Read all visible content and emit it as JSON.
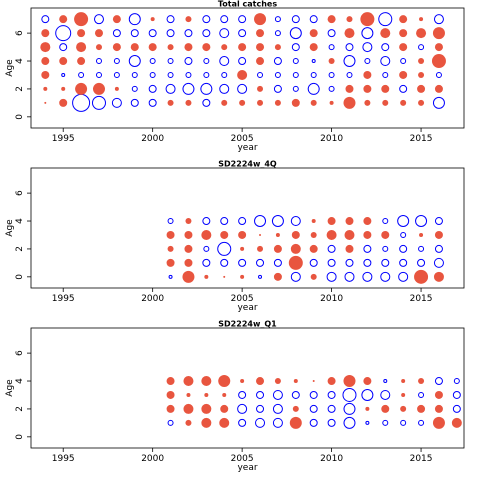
{
  "chart_data": [
    {
      "type": "scatter",
      "title": "Total catches",
      "xlabel": "year",
      "ylabel": "Age",
      "xlim": [
        1993.2,
        2017.4
      ],
      "ylim": [
        -0.8,
        7.8
      ],
      "xticks": [
        1995,
        2000,
        2005,
        2010,
        2015
      ],
      "yticks": [
        0,
        2,
        4,
        6
      ],
      "positive_color": "#E8553F",
      "negative_color": "#0000FF",
      "ages": [
        1,
        2,
        3,
        4,
        5,
        6,
        7
      ],
      "years": [
        1994,
        1995,
        1996,
        1997,
        1998,
        1999,
        2000,
        2001,
        2002,
        2003,
        2004,
        2005,
        2006,
        2007,
        2008,
        2009,
        2010,
        2011,
        2012,
        2013,
        2014,
        2015,
        2016
      ],
      "residuals": [
        [
          1,
          4,
          -9,
          -7,
          -5,
          -4,
          -4,
          3,
          3,
          -4,
          3,
          3,
          3,
          3,
          4,
          3,
          2,
          6,
          3,
          3,
          3,
          3,
          -6
        ],
        [
          2,
          2,
          6,
          6,
          2,
          -3,
          -4,
          -5,
          -6,
          -6,
          -5,
          -5,
          3,
          -4,
          -3,
          -6,
          -3,
          4,
          4,
          4,
          -4,
          4,
          4
        ],
        [
          4,
          -2,
          -3,
          -3,
          -3,
          -3,
          -3,
          -3,
          -3,
          -3,
          -3,
          5,
          -3,
          -3,
          -3,
          -3,
          -3,
          -3,
          4,
          -3,
          4,
          3,
          -3
        ],
        [
          4,
          4,
          4,
          -3,
          -3,
          -6,
          -3,
          -3,
          -4,
          -3,
          -5,
          -4,
          4,
          -4,
          -3,
          -2,
          3,
          -6,
          -3,
          -5,
          -3,
          3,
          7
        ],
        [
          5,
          -4,
          5,
          3,
          4,
          4,
          4,
          3,
          4,
          4,
          3,
          4,
          4,
          3,
          -4,
          4,
          -3,
          -4,
          -5,
          -4,
          4,
          -3,
          4
        ],
        [
          4,
          -8,
          4,
          4,
          -4,
          -4,
          -4,
          -4,
          -4,
          -4,
          -5,
          -4,
          4,
          -3,
          -6,
          4,
          -4,
          5,
          -6,
          5,
          4,
          5,
          6
        ],
        [
          -4,
          4,
          7,
          -5,
          4,
          -6,
          2,
          -4,
          3,
          -4,
          -4,
          -4,
          6,
          -3,
          -4,
          -4,
          4,
          3,
          7,
          -7,
          4,
          2,
          -5
        ]
      ]
    },
    {
      "type": "scatter",
      "title": "SD2224w_4Q",
      "xlabel": "year",
      "ylabel": "Age",
      "xlim": [
        1993.2,
        2017.4
      ],
      "ylim": [
        -0.8,
        7.8
      ],
      "xticks": [
        1995,
        2000,
        2005,
        2010,
        2015
      ],
      "yticks": [
        0,
        2,
        4,
        6
      ],
      "positive_color": "#E8553F",
      "negative_color": "#0000FF",
      "ages": [
        0,
        1,
        2,
        3,
        4
      ],
      "years": [
        2001,
        2002,
        2003,
        2004,
        2005,
        2006,
        2007,
        2008,
        2009,
        2010,
        2011,
        2012,
        2013,
        2014,
        2015,
        2016
      ],
      "residuals": [
        [
          -2,
          6,
          2,
          1,
          2,
          -2,
          4,
          -5,
          3,
          -5,
          -5,
          -5,
          -5,
          -5,
          7,
          5
        ],
        [
          4,
          4,
          -4,
          -4,
          -4,
          -4,
          -4,
          7,
          -4,
          -4,
          -4,
          -4,
          -4,
          -4,
          -4,
          -5
        ],
        [
          3,
          4,
          -3,
          -7,
          2,
          3,
          4,
          5,
          4,
          -4,
          4,
          -4,
          -3,
          -4,
          -3,
          -4
        ],
        [
          4,
          4,
          5,
          4,
          4,
          1,
          2,
          4,
          3,
          5,
          5,
          4,
          4,
          -3,
          2,
          4
        ],
        [
          -3,
          3,
          -4,
          -4,
          -4,
          -6,
          -6,
          -5,
          2,
          4,
          4,
          4,
          -3,
          -6,
          -6,
          -4
        ]
      ]
    },
    {
      "type": "scatter",
      "title": "SD2224w_Q1",
      "xlabel": "year",
      "ylabel": "Age",
      "xlim": [
        1993.2,
        2017.4
      ],
      "ylim": [
        -0.8,
        7.8
      ],
      "xticks": [
        1995,
        2000,
        2005,
        2010,
        2015
      ],
      "yticks": [
        0,
        2,
        4,
        6
      ],
      "positive_color": "#E8553F",
      "negative_color": "#0000FF",
      "ages": [
        1,
        2,
        3,
        4
      ],
      "years": [
        2001,
        2002,
        2003,
        2004,
        2005,
        2006,
        2007,
        2008,
        2009,
        2010,
        2011,
        2012,
        2013,
        2014,
        2015,
        2016,
        2017
      ],
      "residuals": [
        [
          -3,
          3,
          5,
          5,
          -4,
          -5,
          -5,
          6,
          -4,
          -4,
          -6,
          -2,
          -3,
          -3,
          -3,
          6,
          5
        ],
        [
          4,
          5,
          5,
          4,
          -5,
          -4,
          -5,
          3,
          -4,
          -4,
          -6,
          2,
          4,
          3,
          4,
          4,
          -4
        ],
        [
          4,
          2,
          2,
          2,
          -4,
          -4,
          -5,
          -4,
          -4,
          -4,
          -7,
          -6,
          -5,
          2,
          -3,
          4,
          -4
        ],
        [
          4,
          5,
          5,
          6,
          2,
          4,
          3,
          2,
          1,
          4,
          6,
          4,
          -2,
          2,
          3,
          -4,
          -3
        ]
      ]
    }
  ]
}
